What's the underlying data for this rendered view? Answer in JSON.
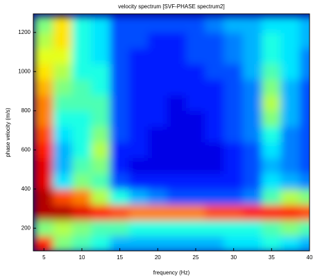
{
  "chart_data": {
    "type": "heatmap",
    "title": "velocity spectrum [SVF-PHASE spectrum2]",
    "x_label": "frequency (Hz)",
    "y_label": "phase velocity (m/s)",
    "colormap": "jet",
    "zlim": [
      0,
      1
    ],
    "xlim": [
      3.6,
      40
    ],
    "ylim": [
      84,
      1295
    ],
    "xticks": [
      5,
      10,
      15,
      20,
      25,
      30,
      35,
      40
    ],
    "yticks": [
      200,
      400,
      600,
      800,
      1000,
      1200
    ],
    "x": [
      5,
      7.5,
      10,
      12.5,
      15,
      17.5,
      20,
      22.5,
      25,
      27.5,
      30,
      32.5,
      35,
      37.5,
      40
    ],
    "y": [
      120,
      200,
      280,
      360,
      440,
      520,
      600,
      680,
      760,
      840,
      920,
      1000,
      1080,
      1160,
      1240
    ],
    "z": [
      [
        0.85,
        0.5,
        0.45,
        0.4,
        0.3,
        0.3,
        0.3,
        0.3,
        0.3,
        0.3,
        0.35,
        0.35,
        0.4,
        0.35,
        0.3
      ],
      [
        0.5,
        0.55,
        0.5,
        0.45,
        0.45,
        0.4,
        0.4,
        0.4,
        0.4,
        0.4,
        0.4,
        0.4,
        0.45,
        0.5,
        0.45
      ],
      [
        0.95,
        0.95,
        0.9,
        0.85,
        0.8,
        0.75,
        0.75,
        0.75,
        0.75,
        0.8,
        0.8,
        0.85,
        0.85,
        0.85,
        0.8
      ],
      [
        0.95,
        0.8,
        0.75,
        0.55,
        0.4,
        0.3,
        0.25,
        0.2,
        0.2,
        0.2,
        0.2,
        0.25,
        0.45,
        0.55,
        0.5
      ],
      [
        0.9,
        0.35,
        0.5,
        0.45,
        0.2,
        0.15,
        0.15,
        0.15,
        0.15,
        0.15,
        0.15,
        0.2,
        0.35,
        0.3,
        0.25
      ],
      [
        0.9,
        0.3,
        0.45,
        0.5,
        0.15,
        0.1,
        0.1,
        0.1,
        0.1,
        0.1,
        0.15,
        0.2,
        0.3,
        0.25,
        0.2
      ],
      [
        0.85,
        0.3,
        0.4,
        0.55,
        0.15,
        0.15,
        0.1,
        0.1,
        0.1,
        0.1,
        0.15,
        0.2,
        0.35,
        0.25,
        0.2
      ],
      [
        0.8,
        0.35,
        0.4,
        0.5,
        0.2,
        0.15,
        0.1,
        0.1,
        0.1,
        0.15,
        0.2,
        0.25,
        0.4,
        0.25,
        0.2
      ],
      [
        0.75,
        0.4,
        0.4,
        0.45,
        0.2,
        0.15,
        0.15,
        0.1,
        0.1,
        0.15,
        0.2,
        0.25,
        0.5,
        0.3,
        0.2
      ],
      [
        0.75,
        0.45,
        0.45,
        0.45,
        0.2,
        0.15,
        0.15,
        0.1,
        0.15,
        0.15,
        0.2,
        0.25,
        0.55,
        0.3,
        0.2
      ],
      [
        0.7,
        0.5,
        0.45,
        0.4,
        0.2,
        0.15,
        0.15,
        0.15,
        0.15,
        0.15,
        0.2,
        0.25,
        0.5,
        0.3,
        0.2
      ],
      [
        0.65,
        0.55,
        0.4,
        0.4,
        0.2,
        0.15,
        0.15,
        0.15,
        0.15,
        0.2,
        0.2,
        0.3,
        0.45,
        0.35,
        0.25
      ],
      [
        0.6,
        0.6,
        0.4,
        0.35,
        0.2,
        0.15,
        0.15,
        0.15,
        0.2,
        0.2,
        0.25,
        0.3,
        0.4,
        0.35,
        0.25
      ],
      [
        0.55,
        0.65,
        0.4,
        0.35,
        0.2,
        0.2,
        0.15,
        0.15,
        0.2,
        0.2,
        0.25,
        0.3,
        0.4,
        0.35,
        0.3
      ],
      [
        0.5,
        0.65,
        0.4,
        0.35,
        0.2,
        0.2,
        0.2,
        0.2,
        0.2,
        0.25,
        0.3,
        0.3,
        0.35,
        0.35,
        0.3
      ]
    ]
  }
}
